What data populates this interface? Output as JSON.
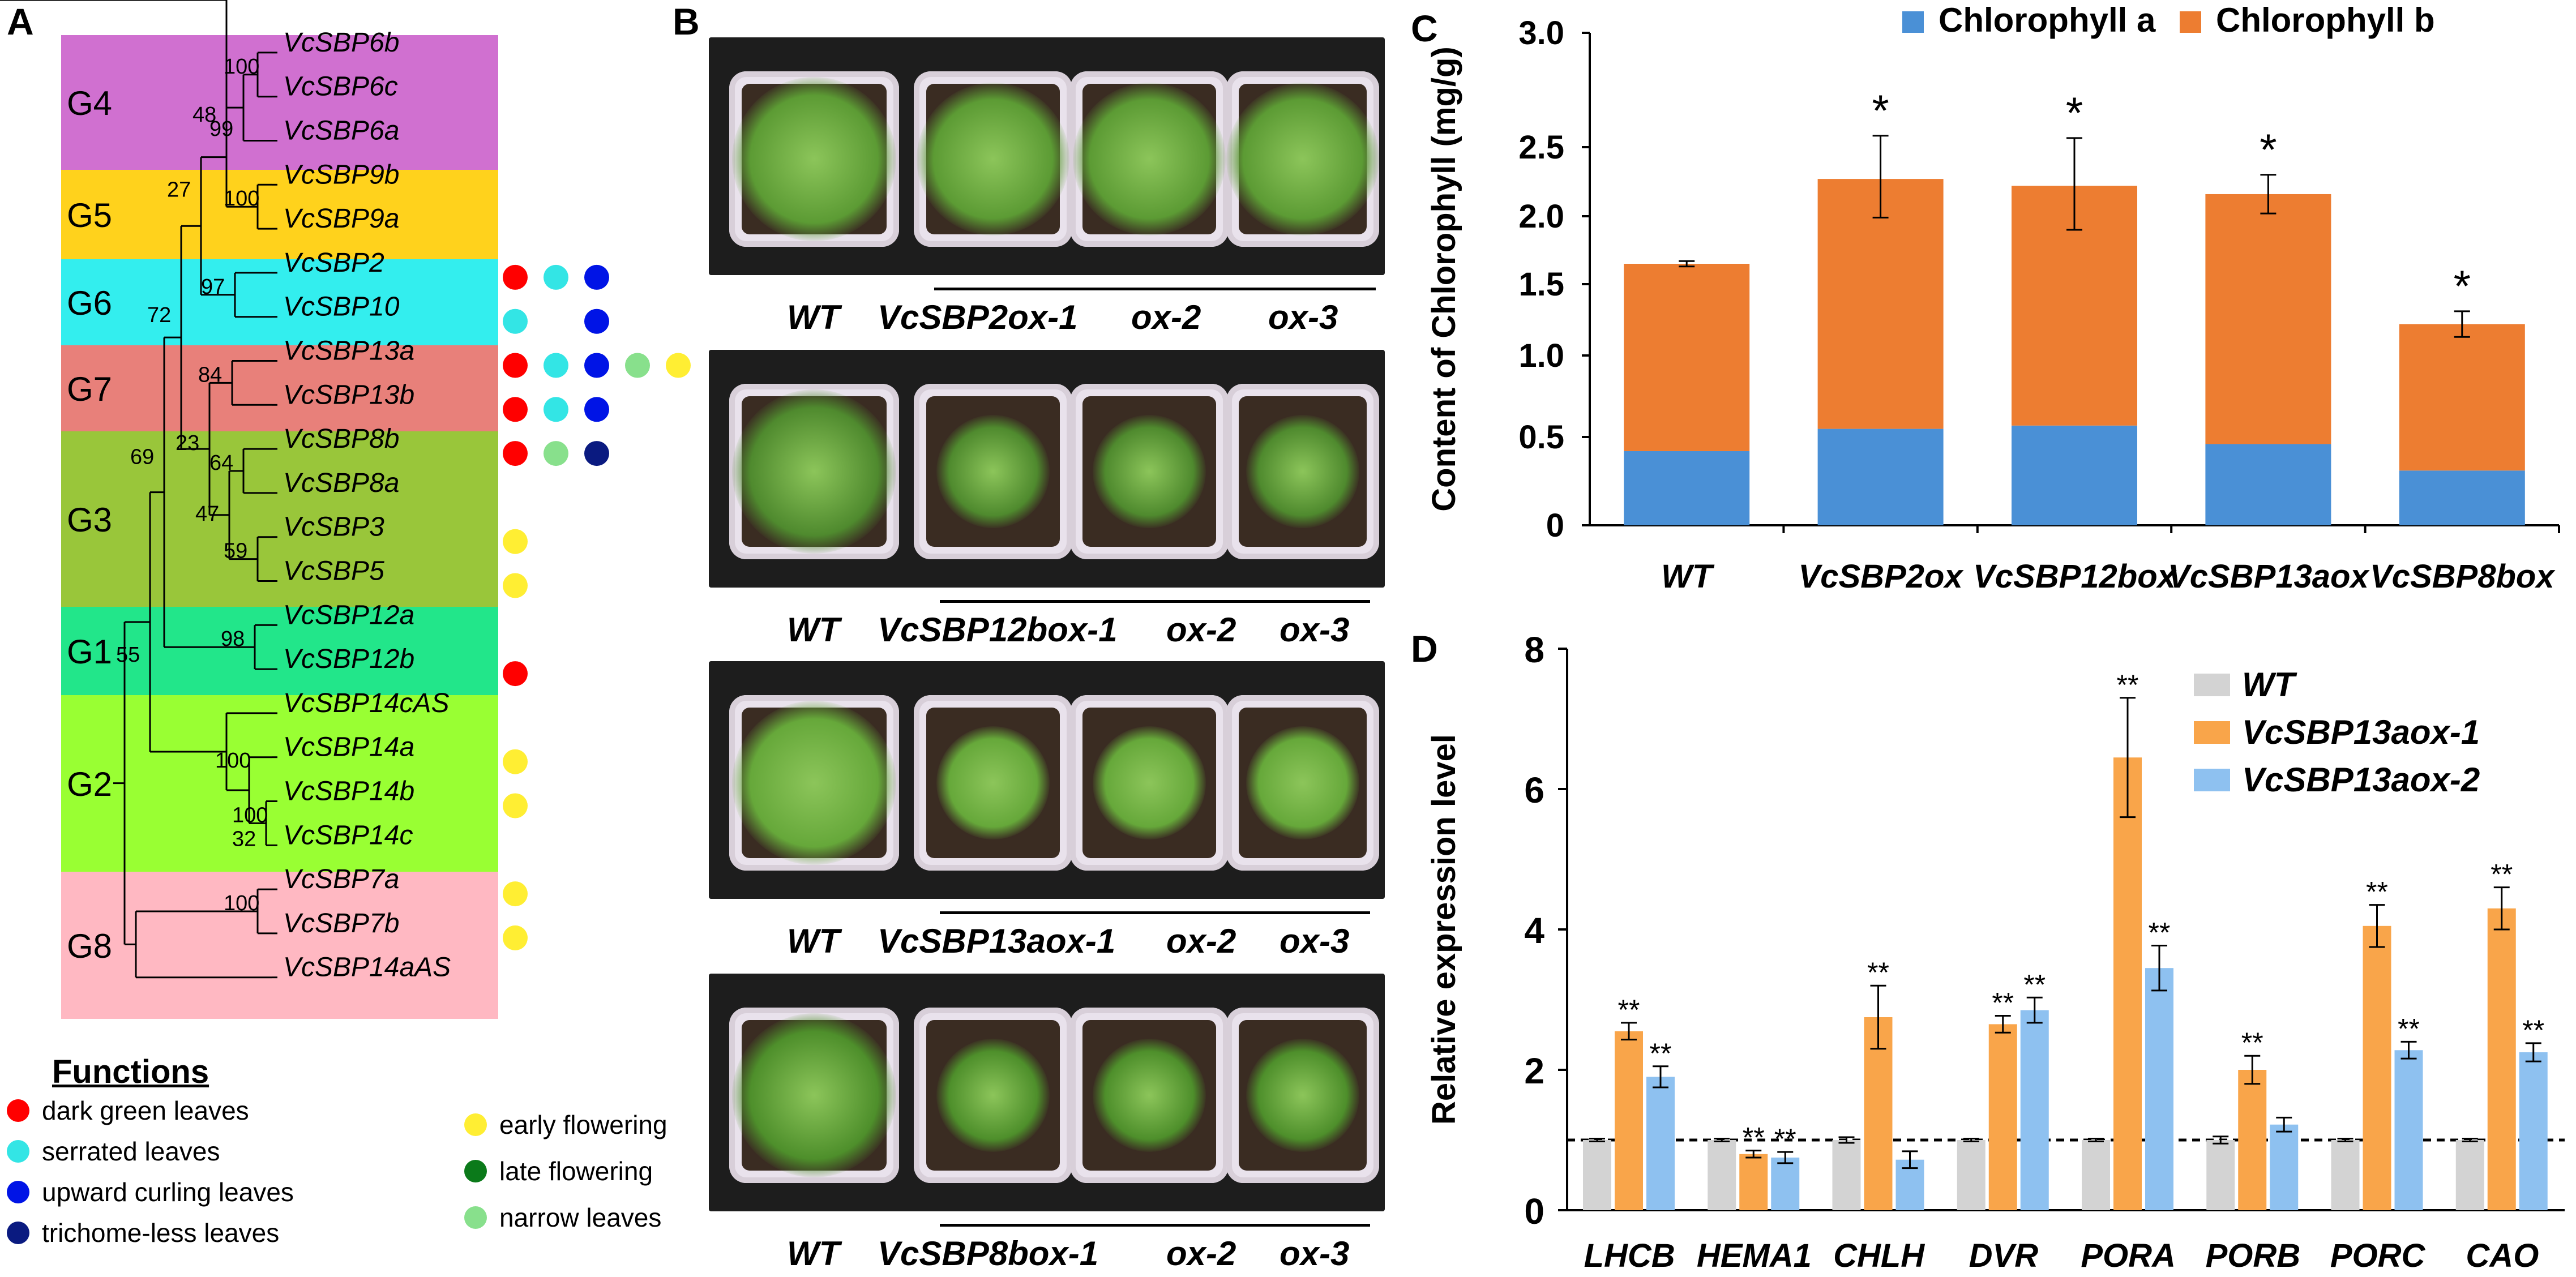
{
  "panels": {
    "a": "A",
    "b": "B",
    "c": "C",
    "d": "D"
  },
  "colors": {
    "dark_green_leaves": "#ff0000",
    "serrated_leaves": "#33e5e5",
    "upward_curling_leaves": "#0014e6",
    "trichome_less_leaves": "#0a1a80",
    "early_flowering": "#ffee33",
    "late_flowering": "#0b7a1a",
    "narrow_leaves": "#88e08c"
  },
  "tree": {
    "groups": [
      {
        "name": "G4",
        "color": "#d070d0"
      },
      {
        "name": "G5",
        "color": "#ffd21c"
      },
      {
        "name": "G6",
        "color": "#33eeee"
      },
      {
        "name": "G7",
        "color": "#e8807a"
      },
      {
        "name": "G3",
        "color": "#99c63a"
      },
      {
        "name": "G1",
        "color": "#22e68a"
      },
      {
        "name": "G2",
        "color": "#99ff33"
      },
      {
        "name": "G8",
        "color": "#ffb8c2"
      }
    ],
    "leaves": [
      "VcSBP6b",
      "VcSBP6c",
      "VcSBP6a",
      "VcSBP9b",
      "VcSBP9a",
      "VcSBP2",
      "VcSBP10",
      "VcSBP13a",
      "VcSBP13b",
      "VcSBP8b",
      "VcSBP8a",
      "VcSBP3",
      "VcSBP5",
      "VcSBP12a",
      "VcSBP12b",
      "VcSBP14cAS",
      "VcSBP14a",
      "VcSBP14b",
      "VcSBP14c",
      "VcSBP7a",
      "VcSBP7b",
      "VcSBP14aAS"
    ],
    "bootstraps": [
      "100",
      "99",
      "48",
      "100",
      "27",
      "97",
      "72",
      "84",
      "23",
      "64",
      "59",
      "47",
      "69",
      "98",
      "55",
      "100",
      "100",
      "32",
      "100"
    ],
    "function_dots": [
      [],
      [],
      [],
      [],
      [],
      [
        "dark_green_leaves",
        "serrated_leaves",
        "upward_curling_leaves"
      ],
      [
        "serrated_leaves",
        "",
        "upward_curling_leaves"
      ],
      [
        "dark_green_leaves",
        "serrated_leaves",
        "upward_curling_leaves",
        "narrow_leaves",
        "early_flowering"
      ],
      [
        "dark_green_leaves",
        "serrated_leaves",
        "upward_curling_leaves"
      ],
      [
        "dark_green_leaves",
        "narrow_leaves",
        "trichome_less_leaves"
      ],
      [],
      [
        "early_flowering"
      ],
      [
        "early_flowering"
      ],
      [],
      [
        "dark_green_leaves"
      ],
      [],
      [
        "early_flowering"
      ],
      [
        "early_flowering"
      ],
      [],
      [
        "early_flowering"
      ],
      [
        "early_flowering"
      ],
      []
    ]
  },
  "functions_legend": {
    "title": "Functions",
    "left": [
      {
        "key": "dark_green_leaves",
        "label": "dark green leaves"
      },
      {
        "key": "serrated_leaves",
        "label": "serrated leaves"
      },
      {
        "key": "upward_curling_leaves",
        "label": "upward curling leaves"
      },
      {
        "key": "trichome_less_leaves",
        "label": "trichome-less leaves"
      }
    ],
    "right": [
      {
        "key": "early_flowering",
        "label": "early flowering"
      },
      {
        "key": "late_flowering",
        "label": "late flowering"
      },
      {
        "key": "narrow_leaves",
        "label": "narrow leaves"
      }
    ]
  },
  "photos": [
    {
      "wt": "WT",
      "line1": "VcSBP2ox-1",
      "line2": "ox-2",
      "line3": "ox-3"
    },
    {
      "wt": "WT",
      "line1": "VcSBP12box-1",
      "line2": "ox-2",
      "line3": "ox-3"
    },
    {
      "wt": "WT",
      "line1": "VcSBP13aox-1",
      "line2": "ox-2",
      "line3": "ox-3"
    },
    {
      "wt": "WT",
      "line1": "VcSBP8box-1",
      "line2": "ox-2",
      "line3": "ox-3"
    }
  ],
  "chart_data": [
    {
      "type": "bar",
      "stacked": true,
      "ylabel": "Content of Chlorophyll (mg/g)",
      "y_ticks": [
        "0",
        "0.5",
        "1.0",
        "1.5",
        "2.0",
        "2.5",
        "3.0"
      ],
      "categories": [
        "WT",
        "VcSBP2ox",
        "VcSBP12box",
        "VcSBP13aox",
        "VcSBP8box"
      ],
      "series": [
        {
          "name": "Chlorophyll a",
          "color": "#4a90d6",
          "values": [
            0.42,
            0.55,
            0.57,
            0.46,
            0.31
          ]
        },
        {
          "name": "Chlorophyll b",
          "color": "#ed7d31",
          "values": [
            1.23,
            1.72,
            1.65,
            1.7,
            0.91
          ]
        }
      ],
      "total_error": [
        0.02,
        0.28,
        0.32,
        0.14,
        0.09
      ],
      "significance": [
        "",
        "*",
        "*",
        "*",
        "*"
      ],
      "legend_position": "top"
    },
    {
      "type": "bar",
      "ylabel": "Relative expression level",
      "ylim": [
        0,
        8
      ],
      "y_ticks": [
        "0",
        "2",
        "4",
        "6",
        "8"
      ],
      "categories": [
        "LHCB",
        "HEMA1",
        "CHLH",
        "DVR",
        "PORA",
        "PORB",
        "PORC",
        "CAO"
      ],
      "reference_line": 1,
      "series": [
        {
          "name": "WT",
          "color": "#d3d3d3",
          "values": [
            1,
            1,
            1,
            1,
            1,
            1,
            1,
            1
          ],
          "errors": [
            0.02,
            0.02,
            0.04,
            0.02,
            0.02,
            0.05,
            0.02,
            0.02
          ],
          "significance": [
            "",
            "",
            "",
            "",
            "",
            "",
            "",
            ""
          ]
        },
        {
          "name": "VcSBP13aox-1",
          "color": "#f9a54a",
          "values": [
            2.55,
            0.8,
            2.75,
            2.65,
            6.45,
            2.0,
            4.05,
            4.3
          ],
          "errors": [
            0.12,
            0.05,
            0.45,
            0.12,
            0.85,
            0.2,
            0.3,
            0.3
          ],
          "significance": [
            "**",
            "**",
            "**",
            "**",
            "**",
            "**",
            "**",
            "**"
          ]
        },
        {
          "name": "VcSBP13aox-2",
          "color": "#8ec1f0",
          "values": [
            1.9,
            0.75,
            0.72,
            2.85,
            3.45,
            1.22,
            2.28,
            2.25
          ],
          "errors": [
            0.15,
            0.08,
            0.12,
            0.18,
            0.32,
            0.1,
            0.12,
            0.13
          ],
          "significance": [
            "**",
            "**",
            "",
            "**",
            "**",
            "",
            "**",
            "**"
          ]
        }
      ],
      "legend_position": "top-right"
    }
  ]
}
